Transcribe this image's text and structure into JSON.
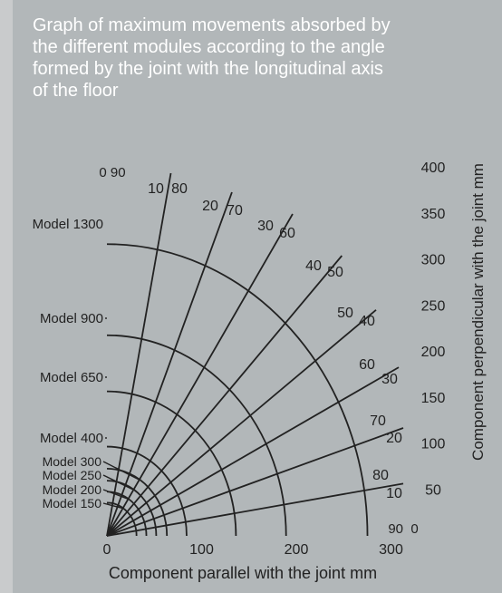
{
  "title": "Graph of maximum movements absorbed by\nthe different modules according to the angle\nformed by the joint with the longitudinal axis\nof the floor",
  "chart_data": {
    "type": "polar-line",
    "title": "Graph of maximum movements absorbed by the different modules according to the angle formed by the joint with the longitudinal axis of the floor",
    "xlabel": "Component parallel with the joint mm",
    "ylabel": "Component perpendicular with the joint mm",
    "x_ticks": [
      "0",
      "100",
      "200",
      "300"
    ],
    "y_ticks": [
      "0",
      "50",
      "100",
      "150",
      "200",
      "250",
      "300",
      "350",
      "400"
    ],
    "xlim": [
      0,
      300
    ],
    "ylim": [
      0,
      400
    ],
    "models": [
      {
        "name": "Model 1300",
        "movement_mm": 317
      },
      {
        "name": "Model 900",
        "movement_mm": 218
      },
      {
        "name": "Model 650",
        "movement_mm": 157
      },
      {
        "name": "Model 400",
        "movement_mm": 97
      },
      {
        "name": "Model 300",
        "movement_mm": 73
      },
      {
        "name": "Model 250",
        "movement_mm": 60
      },
      {
        "name": "Model 200",
        "movement_mm": 48
      },
      {
        "name": "Model 150",
        "movement_mm": 36
      }
    ],
    "angle_lines": [
      {
        "angle_deg": 80,
        "label_a": "10",
        "label_b": "80"
      },
      {
        "angle_deg": 70,
        "label_a": "20",
        "label_b": "70"
      },
      {
        "angle_deg": 60,
        "label_a": "30",
        "label_b": "60"
      },
      {
        "angle_deg": 50,
        "label_a": "40",
        "label_b": "50"
      },
      {
        "angle_deg": 40,
        "label_a": "50",
        "label_b": "40"
      },
      {
        "angle_deg": 30,
        "label_a": "60",
        "label_b": "30"
      },
      {
        "angle_deg": 20,
        "label_a": "70",
        "label_b": "20"
      },
      {
        "angle_deg": 10,
        "label_a": "80",
        "label_b": "10"
      }
    ],
    "corner_labels": {
      "vertical": "0 90",
      "horizontal": "90  0"
    },
    "grid": false
  }
}
